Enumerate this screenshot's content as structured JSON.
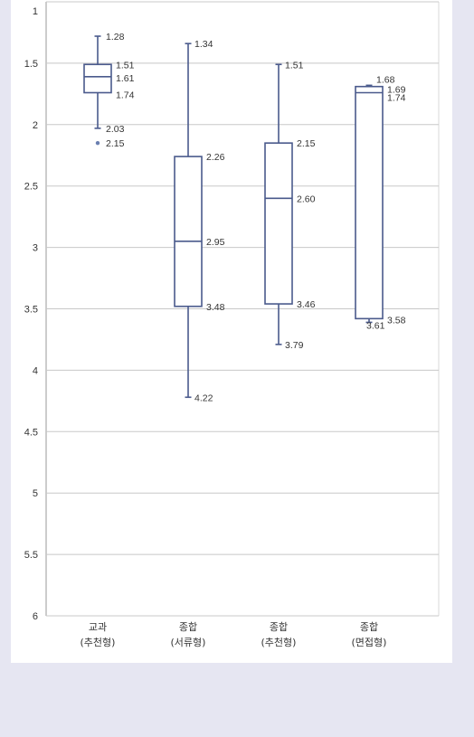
{
  "chart_data": {
    "type": "boxplot",
    "title": "",
    "xlabel": "",
    "ylabel": "",
    "ylim": [
      1,
      6
    ],
    "y_inverted": true,
    "yticks": [
      "1",
      "1.5",
      "2",
      "2.5",
      "3",
      "3.5",
      "4",
      "4.5",
      "5",
      "5.5",
      "6"
    ],
    "grid": true,
    "colors": {
      "box": "#4a5a8c",
      "grid": "#c8c8c8",
      "outlier": "#6a7fb0",
      "background": "#e6e6f2"
    },
    "categories": [
      {
        "line1": "교과",
        "line2": "(추천형)"
      },
      {
        "line1": "종합",
        "line2": "(서류형)"
      },
      {
        "line1": "종합",
        "line2": "(추천형)"
      },
      {
        "line1": "종합",
        "line2": "(면접형)"
      }
    ],
    "series": [
      {
        "whisker_low": 1.28,
        "q1": 1.51,
        "median": 1.61,
        "q3": 1.74,
        "whisker_high": 2.03,
        "outliers": [
          2.15
        ],
        "labels": {
          "whisker_low": "1.28",
          "q1": "1.51",
          "median": "1.61",
          "q3": "1.74",
          "whisker_high": "2.03",
          "outlier": "2.15"
        }
      },
      {
        "whisker_low": 1.34,
        "q1": 2.26,
        "median": 2.95,
        "q3": 3.48,
        "whisker_high": 4.22,
        "outliers": [],
        "labels": {
          "whisker_low": "1.34",
          "q1": "2.26",
          "median": "2.95",
          "q3": "3.48",
          "whisker_high": "4.22"
        }
      },
      {
        "whisker_low": 1.51,
        "q1": 2.15,
        "median": 2.6,
        "q3": 3.46,
        "whisker_high": 3.79,
        "outliers": [],
        "labels": {
          "whisker_low": "1.51",
          "q1": "2.15",
          "median": "2.60",
          "q3": "3.46",
          "whisker_high": "3.79"
        }
      },
      {
        "whisker_low": 1.68,
        "q1": 1.69,
        "median": 1.74,
        "q3": 3.58,
        "whisker_high": 3.61,
        "outliers": [],
        "labels": {
          "whisker_low": "1.68",
          "q1": "1.69",
          "median": "1.74",
          "q3": "3.58",
          "whisker_high": "3.61"
        }
      }
    ]
  }
}
